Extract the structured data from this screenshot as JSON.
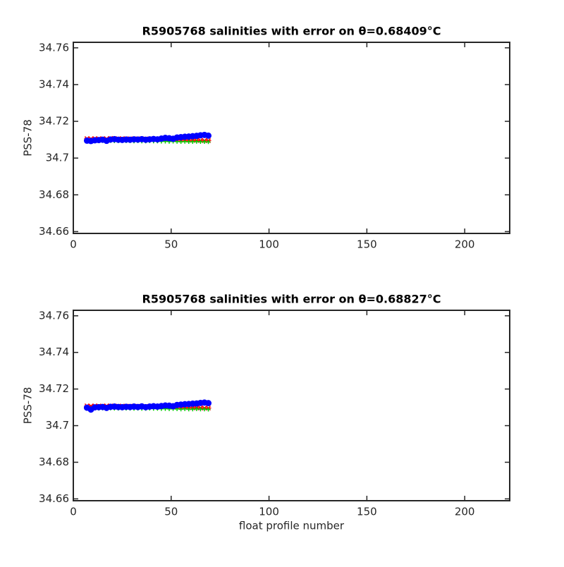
{
  "chart_data": [
    {
      "type": "scatter",
      "title": "R5905768 salinities with error on θ=0.68409°C",
      "y_label": "PSS-78",
      "x": [
        7,
        9,
        11,
        13,
        15,
        17,
        19,
        21,
        23,
        25,
        27,
        29,
        31,
        33,
        35,
        37,
        39,
        41,
        43,
        45,
        47,
        49,
        51,
        53,
        55,
        57,
        59,
        61,
        63,
        65,
        67,
        69
      ],
      "series": [
        {
          "color": "#ff0000",
          "marker": "x",
          "values": [
            34.7106,
            34.7105,
            34.7106,
            34.7105,
            34.7106,
            34.7105,
            34.7107,
            34.7106,
            34.7105,
            34.7106,
            34.7105,
            34.7105,
            34.7104,
            34.7105,
            34.7104,
            34.7104,
            34.7104,
            34.7103,
            34.7103,
            34.7103,
            34.7102,
            34.7101,
            34.71,
            34.7099,
            34.7098,
            34.7098,
            34.7097,
            34.7097,
            34.7096,
            34.7096,
            34.7095,
            34.7095
          ]
        },
        {
          "color": "#00cc00",
          "marker": "+",
          "values": [
            34.7093,
            34.7092,
            34.7094,
            34.7093,
            34.7094,
            34.7093,
            34.7094,
            34.7093,
            34.7093,
            34.7094,
            34.7093,
            34.7093,
            34.7092,
            34.7093,
            34.7092,
            34.7092,
            34.7093,
            34.7092,
            34.7092,
            34.7091,
            34.7091,
            34.709,
            34.7091,
            34.709,
            34.7089,
            34.709,
            34.7089,
            34.7089,
            34.709,
            34.7089,
            34.7089,
            34.7088
          ]
        },
        {
          "color": "#0000ff",
          "marker": "o",
          "values": [
            34.7095,
            34.7093,
            34.7097,
            34.7098,
            34.71,
            34.7094,
            34.7101,
            34.7103,
            34.71,
            34.7099,
            34.7101,
            34.71,
            34.7102,
            34.7101,
            34.7103,
            34.71,
            34.7102,
            34.7104,
            34.7102,
            34.7106,
            34.711,
            34.7108,
            34.7105,
            34.7112,
            34.7114,
            34.7116,
            34.7117,
            34.7119,
            34.7121,
            34.7124,
            34.7126,
            34.7122
          ]
        }
      ],
      "xlim": [
        0,
        223
      ],
      "xticks": [
        0,
        50,
        100,
        150,
        200
      ],
      "ylim": [
        34.659,
        34.763
      ],
      "yticks": [
        34.66,
        34.68,
        34.7,
        34.72,
        34.74,
        34.76
      ]
    },
    {
      "type": "scatter",
      "title": "R5905768 salinities with error on θ=0.68827°C",
      "y_label": "PSS-78",
      "x_label": "float profile number",
      "x": [
        7,
        9,
        11,
        13,
        15,
        17,
        19,
        21,
        23,
        25,
        27,
        29,
        31,
        33,
        35,
        37,
        39,
        41,
        43,
        45,
        47,
        49,
        51,
        53,
        55,
        57,
        59,
        61,
        63,
        65,
        67,
        69
      ],
      "series": [
        {
          "color": "#ff0000",
          "marker": "x",
          "values": [
            34.7108,
            34.7107,
            34.7108,
            34.7107,
            34.7107,
            34.7108,
            34.7107,
            34.7107,
            34.7106,
            34.7107,
            34.7106,
            34.7106,
            34.7106,
            34.7106,
            34.7105,
            34.7105,
            34.7105,
            34.7104,
            34.7104,
            34.7104,
            34.7103,
            34.7102,
            34.7101,
            34.71,
            34.7099,
            34.7099,
            34.7098,
            34.7098,
            34.7097,
            34.7097,
            34.7096,
            34.7096
          ]
        },
        {
          "color": "#00cc00",
          "marker": "+",
          "values": [
            34.7095,
            34.7094,
            34.7095,
            34.7094,
            34.7095,
            34.7094,
            34.7095,
            34.7094,
            34.7094,
            34.7095,
            34.7094,
            34.7094,
            34.7093,
            34.7094,
            34.7093,
            34.7093,
            34.7094,
            34.7093,
            34.7093,
            34.7092,
            34.7092,
            34.7091,
            34.7092,
            34.7091,
            34.709,
            34.7091,
            34.709,
            34.709,
            34.7091,
            34.709,
            34.709,
            34.7089
          ]
        },
        {
          "color": "#0000ff",
          "marker": "o",
          "values": [
            34.7098,
            34.7088,
            34.71,
            34.7101,
            34.7102,
            34.7097,
            34.7103,
            34.7104,
            34.7102,
            34.7101,
            34.7103,
            34.7102,
            34.7104,
            34.7102,
            34.7105,
            34.7101,
            34.7104,
            34.7106,
            34.7104,
            34.7107,
            34.711,
            34.7109,
            34.7106,
            34.7113,
            34.7115,
            34.7117,
            34.7118,
            34.712,
            34.7121,
            34.7124,
            34.7126,
            34.7123
          ]
        }
      ],
      "xlim": [
        0,
        223
      ],
      "xticks": [
        0,
        50,
        100,
        150,
        200
      ],
      "ylim": [
        34.659,
        34.763
      ],
      "yticks": [
        34.66,
        34.68,
        34.7,
        34.72,
        34.74,
        34.76
      ]
    }
  ]
}
